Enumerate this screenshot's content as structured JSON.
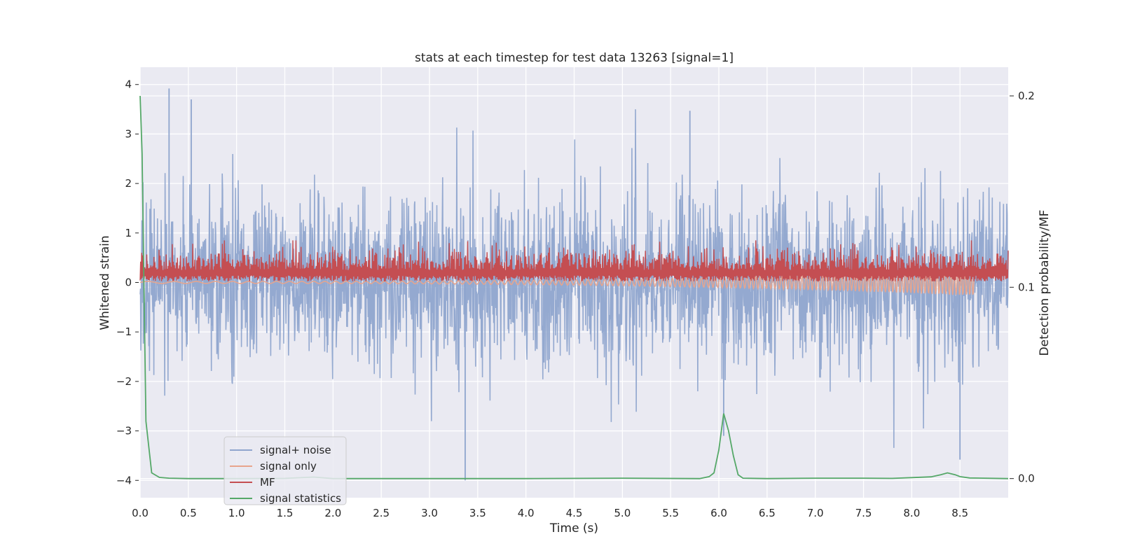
{
  "chart_data": {
    "type": "line",
    "title": "stats at each timestep for test data 13263 [signal=1]",
    "xlabel": "Time (s)",
    "ylabel": "Whitened strain",
    "y2label": "Detection probability/MF",
    "xlim": [
      0.0,
      9.0
    ],
    "ylim": [
      -4.35,
      4.35
    ],
    "y2lim": [
      -0.01,
      0.215
    ],
    "xticks": [
      "0.0",
      "0.5",
      "1.0",
      "1.5",
      "2.0",
      "2.5",
      "3.0",
      "3.5",
      "4.0",
      "4.5",
      "5.0",
      "5.5",
      "6.0",
      "6.5",
      "7.0",
      "7.5",
      "8.0",
      "8.5"
    ],
    "yticks": [
      "4",
      "3",
      "2",
      "1",
      "0",
      "−1",
      "−2",
      "−3",
      "−4"
    ],
    "y2ticks": [
      "0.2",
      "0.1",
      "0.0"
    ],
    "grid": true,
    "legend_position": "lower-left",
    "series": [
      {
        "name": "signal+ noise",
        "color": "#8fa5ce",
        "axis": "left",
        "style": "noise",
        "envelope_sigma": 0.85,
        "peaks": [
          [
            0.3,
            3.92
          ],
          [
            0.53,
            3.7
          ],
          [
            3.37,
            -4.0
          ],
          [
            5.7,
            3.47
          ],
          [
            6.05,
            -3.1
          ],
          [
            8.5,
            -3.58
          ]
        ]
      },
      {
        "name": "signal only",
        "color": "#e8a48c",
        "axis": "left",
        "style": "chirp",
        "x_end": 8.65,
        "amplitude_end": 0.25
      },
      {
        "name": "MF",
        "color": "#c44e52",
        "axis": "left",
        "style": "band",
        "baseline": 0.25,
        "band_top": [
          0.45,
          0.85
        ],
        "x_end": 9.0
      },
      {
        "name": "signal statistics",
        "color": "#55a868",
        "axis": "right",
        "x": [
          0.0,
          0.02,
          0.04,
          0.06,
          0.12,
          0.2,
          0.3,
          0.5,
          1.0,
          1.5,
          1.8,
          2.0,
          3.0,
          4.0,
          5.0,
          5.8,
          5.9,
          5.95,
          6.0,
          6.05,
          6.1,
          6.15,
          6.2,
          6.25,
          6.5,
          7.0,
          7.5,
          7.8,
          8.0,
          8.2,
          8.3,
          8.37,
          8.45,
          8.5,
          8.6,
          9.0
        ],
        "y": [
          0.2,
          0.17,
          0.1,
          0.03,
          0.003,
          0.0006,
          0.0002,
          0.0,
          0.0,
          0.0001,
          0.0008,
          0.0,
          0.0,
          0.0,
          0.0002,
          0.0,
          0.001,
          0.003,
          0.015,
          0.034,
          0.025,
          0.012,
          0.002,
          0.0002,
          0.0,
          0.0002,
          0.0002,
          0.0001,
          0.0005,
          0.0009,
          0.002,
          0.003,
          0.002,
          0.001,
          0.0003,
          0.0
        ]
      }
    ]
  }
}
